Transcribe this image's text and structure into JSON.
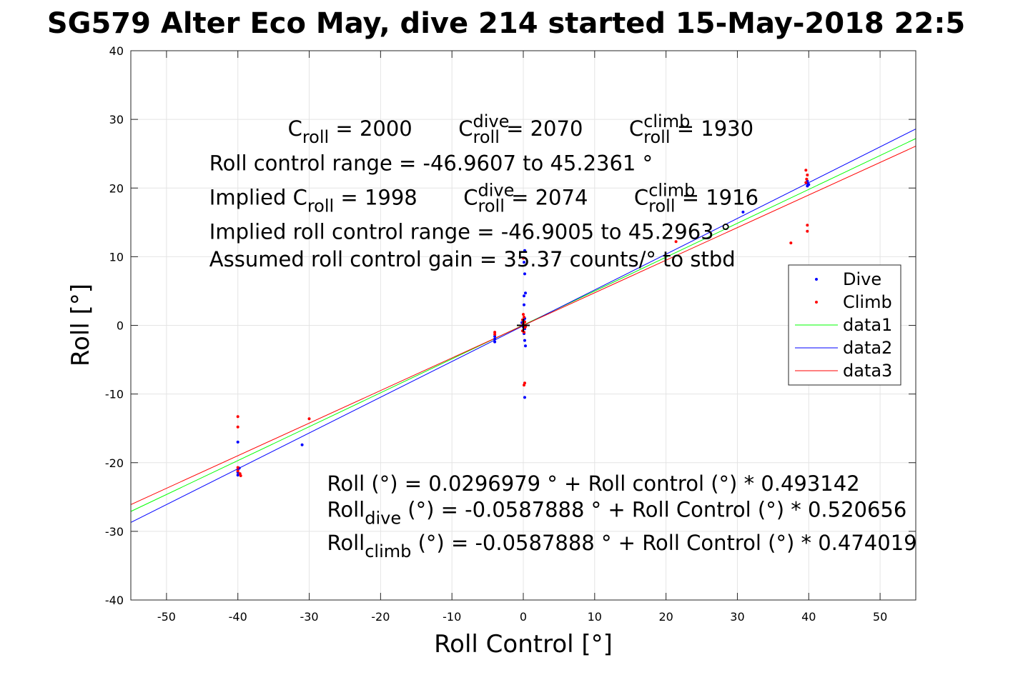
{
  "figure": {
    "title": "SG579 Alter Eco May, dive 214 started 15-May-2018 22:5"
  },
  "chart_data": {
    "type": "scatter",
    "title": "SG579 Alter Eco May, dive 214 started 15-May-2018 22:5",
    "xlabel": "Roll Control [°]",
    "ylabel": "Roll [°]",
    "xlim": [
      -55,
      55
    ],
    "ylim": [
      -40,
      40
    ],
    "xticks": [
      -50,
      -40,
      -30,
      -20,
      -10,
      0,
      10,
      20,
      30,
      40,
      50
    ],
    "yticks": [
      40,
      30,
      20,
      10,
      0,
      -10,
      -20,
      -30,
      -40
    ],
    "grid": true,
    "legend_position": "right",
    "series": [
      {
        "name": "Dive",
        "kind": "points",
        "color": "#0000ff",
        "x": [
          -40,
          -40,
          -40,
          -40,
          -39.8,
          -31,
          -4,
          -4,
          -4,
          0,
          0.1,
          0.2,
          0.2,
          0.1,
          0.2,
          0.3,
          0.2,
          0,
          0.1,
          -0.2,
          0.1,
          0.3,
          0.2,
          0.1,
          0.2,
          39.8,
          39.8,
          39.8,
          30.8,
          40
        ],
        "y": [
          -17,
          -21,
          -21.4,
          -21.8,
          -20.8,
          -17.4,
          -1.6,
          -2.0,
          -2.4,
          0.2,
          0.6,
          1.0,
          -0.5,
          -1.2,
          -2.2,
          -3.0,
          -10.5,
          -0.2,
          3.0,
          0.4,
          4.3,
          4.7,
          7.5,
          9.2,
          10.9,
          21,
          20.7,
          20.3,
          16.5,
          20.5
        ]
      },
      {
        "name": "Climb",
        "kind": "points",
        "color": "#ff0000",
        "x": [
          -40,
          -40,
          -40,
          -40,
          -39.7,
          -39.6,
          -30,
          -4,
          -4,
          0,
          -0.1,
          0.1,
          0,
          0.2,
          -0.1,
          0.1,
          0.2,
          0.1,
          0,
          0.2,
          0.3,
          0,
          21.4,
          37.5,
          39.6,
          39.8,
          39.7,
          39.6,
          39.8,
          39.8
        ],
        "y": [
          -13.3,
          -14.8,
          -20.7,
          -21.2,
          -21.6,
          -21.9,
          -13.6,
          -1.0,
          -1.3,
          0.3,
          0.8,
          1.2,
          1.6,
          -0.3,
          -0.8,
          -1.0,
          -8.4,
          -8.7,
          9.8,
          0.5,
          -0.2,
          0.0,
          12.2,
          12.0,
          22.6,
          21.9,
          21.3,
          20.8,
          14.6,
          13.7
        ]
      },
      {
        "name": "data1",
        "kind": "line",
        "color": "#00ff00",
        "x": [
          -55,
          55
        ],
        "y": [
          -27.1,
          27.2
        ]
      },
      {
        "name": "data2",
        "kind": "line",
        "color": "#0000ff",
        "x": [
          -55,
          55
        ],
        "y": [
          -28.7,
          28.6
        ]
      },
      {
        "name": "data3",
        "kind": "line",
        "color": "#ff0000",
        "x": [
          -55,
          55
        ],
        "y": [
          -26.1,
          26.1
        ]
      }
    ],
    "reference_point": {
      "x": 0,
      "y": 0,
      "marker": "+"
    },
    "annotations": [
      {
        "x": -33,
        "y": 27.6,
        "runs": [
          {
            "t": "C"
          },
          {
            "t": "roll",
            "s": "sub"
          },
          {
            "t": " = 2000       C"
          },
          {
            "t": "dive",
            "s": "sup"
          },
          {
            "t": "roll",
            "s": "sub"
          },
          {
            "t": " = 2070       C"
          },
          {
            "t": "climb",
            "s": "sup"
          },
          {
            "t": "roll",
            "s": "sub"
          },
          {
            "t": " = 1930"
          }
        ]
      },
      {
        "x": -44,
        "y": 22.6,
        "runs": [
          {
            "t": "Roll control range = -46.9607 to 45.2361 °"
          }
        ]
      },
      {
        "x": -44,
        "y": 17.6,
        "runs": [
          {
            "t": "Implied C"
          },
          {
            "t": "roll",
            "s": "sub"
          },
          {
            "t": " = 1998       C"
          },
          {
            "t": "dive",
            "s": "sup"
          },
          {
            "t": "roll",
            "s": "sub"
          },
          {
            "t": " = 2074       C"
          },
          {
            "t": "climb",
            "s": "sup"
          },
          {
            "t": "roll",
            "s": "sub"
          },
          {
            "t": " = 1916"
          }
        ]
      },
      {
        "x": -44,
        "y": 12.6,
        "runs": [
          {
            "t": "Implied roll control range = -46.9005 to 45.2963 °"
          }
        ]
      },
      {
        "x": -44,
        "y": 8.6,
        "runs": [
          {
            "t": "Assumed roll control gain = 35.37 counts/° to stbd"
          }
        ]
      },
      {
        "x": -27.5,
        "y": -24.1,
        "runs": [
          {
            "t": "Roll (°) = 0.0296979 ° + Roll control (°) * 0.493142"
          }
        ]
      },
      {
        "x": -27.5,
        "y": -27.9,
        "runs": [
          {
            "t": "Roll"
          },
          {
            "t": "dive",
            "s": "sub"
          },
          {
            "t": " (°) = -0.0587888 ° + Roll Control (°) * 0.520656"
          }
        ]
      },
      {
        "x": -27.5,
        "y": -32.7,
        "runs": [
          {
            "t": "Roll"
          },
          {
            "t": "climb",
            "s": "sub"
          },
          {
            "t": " (°) = -0.0587888 ° + Roll Control (°) * 0.474019"
          }
        ]
      }
    ]
  }
}
